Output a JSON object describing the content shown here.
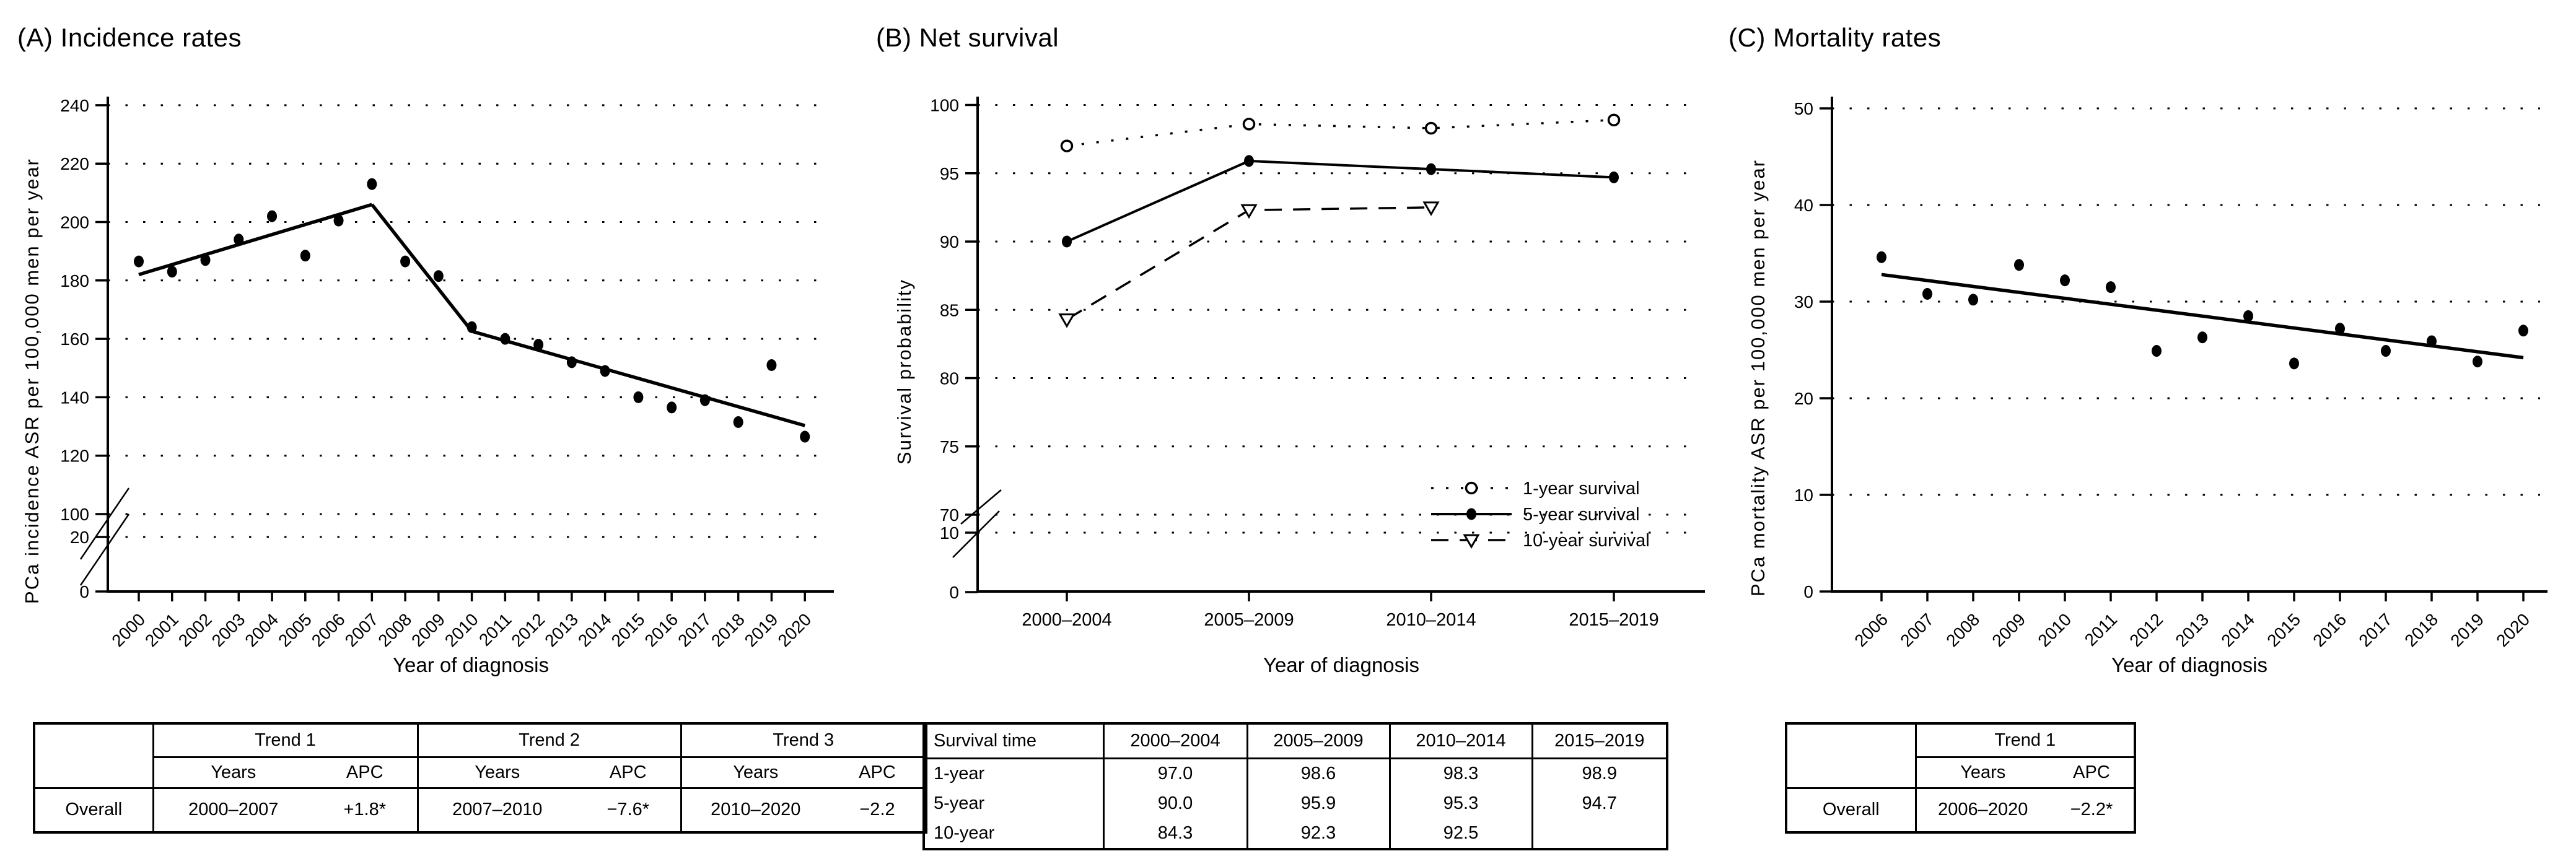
{
  "figure": {
    "background": "#ffffff",
    "ink_color": "#000000"
  },
  "panels": [
    {
      "id": "A",
      "title": "(A) Incidence rates",
      "y_axis_label": "PCa incidence ASR per 100,000 men per year",
      "x_axis_label": "Year of diagnosis",
      "table": {
        "type": "trend",
        "corner_label": "",
        "groups": [
          "Trend 1",
          "Trend 2",
          "Trend 3"
        ],
        "sub_headers": [
          "Years",
          "APC"
        ],
        "rows": [
          {
            "label": "Overall",
            "cells": [
              [
                "2000–2007",
                "+1.8*"
              ],
              [
                "2007–2010",
                "−7.6*"
              ],
              [
                "2010–2020",
                "−2.2"
              ]
            ]
          }
        ]
      }
    },
    {
      "id": "B",
      "title": "(B) Net survival",
      "y_axis_label": "Survival probability",
      "x_axis_label": "Year of diagnosis",
      "legend": {
        "items": [
          "1-year survival",
          "5-year survival",
          "10-year survival"
        ]
      },
      "table": {
        "type": "matrix",
        "headers": [
          "Survival time",
          "2000–2004",
          "2005–2009",
          "2010–2014",
          "2015–2019"
        ],
        "rows": [
          [
            "1-year",
            "97.0",
            "98.6",
            "98.3",
            "98.9"
          ],
          [
            "5-year",
            "90.0",
            "95.9",
            "95.3",
            "94.7"
          ],
          [
            "10-year",
            "84.3",
            "92.3",
            "92.5",
            ""
          ]
        ]
      }
    },
    {
      "id": "C",
      "title": "(C) Mortality rates",
      "y_axis_label": "PCa mortality ASR per 100,000 men per year",
      "x_axis_label": "Year of diagnosis",
      "table": {
        "type": "trend",
        "corner_label": "",
        "groups": [
          "Trend 1"
        ],
        "sub_headers": [
          "Years",
          "APC"
        ],
        "rows": [
          {
            "label": "Overall",
            "cells": [
              [
                "2006–2020",
                "−2.2*"
              ]
            ]
          }
        ]
      }
    }
  ],
  "chart_data": [
    {
      "type": "scatter",
      "title": "(A) Incidence rates",
      "xlabel": "Year of diagnosis",
      "ylabel": "PCa incidence ASR per 100,000 men per year",
      "x": [
        2000,
        2001,
        2002,
        2003,
        2004,
        2005,
        2006,
        2007,
        2008,
        2009,
        2010,
        2011,
        2012,
        2013,
        2014,
        2015,
        2016,
        2017,
        2018,
        2019,
        2020
      ],
      "y": [
        186.5,
        183,
        187,
        194,
        202,
        188.5,
        200.5,
        213,
        186.5,
        181.5,
        164,
        160,
        158,
        152,
        149,
        140,
        136.5,
        139,
        131.5,
        151,
        126.5
      ],
      "trend_lines": [
        {
          "label": "APC +1.8*",
          "x": [
            2000,
            2007
          ],
          "y": [
            182,
            206
          ]
        },
        {
          "label": "APC −7.6*",
          "x": [
            2007,
            2010
          ],
          "y": [
            206,
            162.6
          ]
        },
        {
          "label": "APC −2.2",
          "x": [
            2010,
            2020
          ],
          "y": [
            162.6,
            130.3
          ]
        }
      ],
      "yticks": [
        0,
        20,
        100,
        120,
        140,
        160,
        180,
        200,
        220,
        240
      ],
      "axis_break_between": [
        20,
        100
      ],
      "ylim": [
        0,
        240
      ],
      "grid": "dotted-horizontal",
      "marker": "filled-circle"
    },
    {
      "type": "line",
      "title": "(B) Net survival",
      "xlabel": "Year of diagnosis",
      "ylabel": "Survival probability",
      "categories": [
        "2000–2004",
        "2005–2009",
        "2010–2014",
        "2015–2019"
      ],
      "series": [
        {
          "name": "1-year survival",
          "line": "dotted",
          "marker": "open-circle",
          "values": [
            97.0,
            98.6,
            98.3,
            98.9
          ]
        },
        {
          "name": "5-year survival",
          "line": "solid",
          "marker": "filled-circle",
          "values": [
            90.0,
            95.9,
            95.3,
            94.7
          ]
        },
        {
          "name": "10-year survival",
          "line": "dashed",
          "marker": "open-triangle-down",
          "values": [
            84.3,
            92.3,
            92.5,
            null
          ]
        }
      ],
      "yticks": [
        0,
        10,
        70,
        75,
        80,
        85,
        90,
        95,
        100
      ],
      "axis_break_between": [
        10,
        70
      ],
      "ylim": [
        0,
        100
      ],
      "grid": "dotted-horizontal",
      "legend_position": "lower-right"
    },
    {
      "type": "scatter",
      "title": "(C) Mortality rates",
      "xlabel": "Year of diagnosis",
      "ylabel": "PCa mortality ASR per 100,000 men per year",
      "x": [
        2006,
        2007,
        2008,
        2009,
        2010,
        2011,
        2012,
        2013,
        2014,
        2015,
        2016,
        2017,
        2018,
        2019,
        2020
      ],
      "y": [
        34.6,
        30.8,
        30.2,
        33.8,
        32.2,
        31.5,
        24.9,
        26.3,
        28.5,
        23.6,
        27.2,
        24.9,
        25.9,
        23.8,
        27.0
      ],
      "trend_lines": [
        {
          "label": "APC −2.2*",
          "x": [
            2006,
            2020
          ],
          "y": [
            32.8,
            24.2
          ]
        }
      ],
      "yticks": [
        0,
        10,
        20,
        30,
        40,
        50
      ],
      "ylim": [
        0,
        50
      ],
      "grid": "dotted-horizontal",
      "marker": "filled-circle"
    }
  ]
}
